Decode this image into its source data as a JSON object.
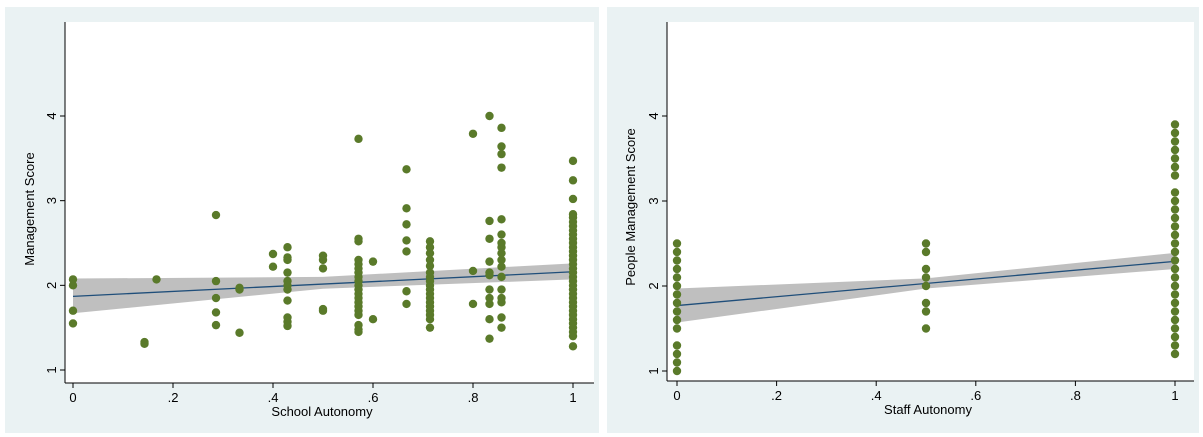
{
  "chart_data": [
    {
      "type": "scatter",
      "title": "",
      "xlabel": "School Autonomy",
      "ylabel": "Management Score",
      "xlim": [
        0,
        1
      ],
      "ylim": [
        1,
        4.95
      ],
      "x_ticks": [
        0,
        0.2,
        0.4,
        0.6,
        0.8,
        1
      ],
      "x_tick_labels": [
        "0",
        ".2",
        ".4",
        ".6",
        ".8",
        "1"
      ],
      "y_ticks": [
        1,
        2,
        3,
        4
      ],
      "y_tick_labels": [
        "1",
        "2",
        "3",
        "4"
      ],
      "grid": false,
      "legend": "none",
      "colors": {
        "marker": "#5a7a2a",
        "fit_line": "#1f4e7a",
        "ci_band": "#b4b4b4"
      },
      "fit_line": {
        "x": [
          0,
          1
        ],
        "y": [
          1.87,
          2.16
        ]
      },
      "ci_band": {
        "x": [
          0,
          0.5,
          1
        ],
        "lower": [
          1.67,
          1.96,
          2.07
        ],
        "upper": [
          2.08,
          2.1,
          2.26
        ]
      },
      "points": [
        {
          "x": 0,
          "y": 2.07
        },
        {
          "x": 0,
          "y": 2.0
        },
        {
          "x": 0,
          "y": 1.7
        },
        {
          "x": 0,
          "y": 1.55
        },
        {
          "x": 0.143,
          "y": 1.33
        },
        {
          "x": 0.143,
          "y": 1.31
        },
        {
          "x": 0.167,
          "y": 2.07
        },
        {
          "x": 0.286,
          "y": 2.83
        },
        {
          "x": 0.286,
          "y": 2.05
        },
        {
          "x": 0.286,
          "y": 1.85
        },
        {
          "x": 0.286,
          "y": 1.68
        },
        {
          "x": 0.286,
          "y": 1.53
        },
        {
          "x": 0.333,
          "y": 1.97
        },
        {
          "x": 0.333,
          "y": 1.95
        },
        {
          "x": 0.333,
          "y": 1.44
        },
        {
          "x": 0.4,
          "y": 2.37
        },
        {
          "x": 0.4,
          "y": 2.22
        },
        {
          "x": 0.429,
          "y": 2.45
        },
        {
          "x": 0.429,
          "y": 2.33
        },
        {
          "x": 0.429,
          "y": 2.3
        },
        {
          "x": 0.429,
          "y": 2.15
        },
        {
          "x": 0.429,
          "y": 2.05
        },
        {
          "x": 0.429,
          "y": 2.0
        },
        {
          "x": 0.429,
          "y": 1.95
        },
        {
          "x": 0.429,
          "y": 1.82
        },
        {
          "x": 0.429,
          "y": 1.62
        },
        {
          "x": 0.429,
          "y": 1.57
        },
        {
          "x": 0.429,
          "y": 1.52
        },
        {
          "x": 0.5,
          "y": 2.35
        },
        {
          "x": 0.5,
          "y": 2.3
        },
        {
          "x": 0.5,
          "y": 2.2
        },
        {
          "x": 0.5,
          "y": 1.72
        },
        {
          "x": 0.5,
          "y": 1.7
        },
        {
          "x": 0.571,
          "y": 3.73
        },
        {
          "x": 0.571,
          "y": 2.55
        },
        {
          "x": 0.571,
          "y": 2.52
        },
        {
          "x": 0.571,
          "y": 2.3
        },
        {
          "x": 0.571,
          "y": 2.25
        },
        {
          "x": 0.571,
          "y": 2.2
        },
        {
          "x": 0.571,
          "y": 2.15
        },
        {
          "x": 0.571,
          "y": 2.1
        },
        {
          "x": 0.571,
          "y": 2.05
        },
        {
          "x": 0.571,
          "y": 2.0
        },
        {
          "x": 0.571,
          "y": 1.95
        },
        {
          "x": 0.571,
          "y": 1.9
        },
        {
          "x": 0.571,
          "y": 1.85
        },
        {
          "x": 0.571,
          "y": 1.8
        },
        {
          "x": 0.571,
          "y": 1.75
        },
        {
          "x": 0.571,
          "y": 1.7
        },
        {
          "x": 0.571,
          "y": 1.65
        },
        {
          "x": 0.571,
          "y": 1.53
        },
        {
          "x": 0.571,
          "y": 1.48
        },
        {
          "x": 0.571,
          "y": 1.45
        },
        {
          "x": 0.6,
          "y": 2.28
        },
        {
          "x": 0.6,
          "y": 1.6
        },
        {
          "x": 0.667,
          "y": 3.37
        },
        {
          "x": 0.667,
          "y": 2.91
        },
        {
          "x": 0.667,
          "y": 2.72
        },
        {
          "x": 0.667,
          "y": 2.53
        },
        {
          "x": 0.667,
          "y": 2.4
        },
        {
          "x": 0.667,
          "y": 1.93
        },
        {
          "x": 0.667,
          "y": 1.78
        },
        {
          "x": 0.714,
          "y": 2.52
        },
        {
          "x": 0.714,
          "y": 2.45
        },
        {
          "x": 0.714,
          "y": 2.38
        },
        {
          "x": 0.714,
          "y": 2.3
        },
        {
          "x": 0.714,
          "y": 2.23
        },
        {
          "x": 0.714,
          "y": 2.15
        },
        {
          "x": 0.714,
          "y": 2.1
        },
        {
          "x": 0.714,
          "y": 2.05
        },
        {
          "x": 0.714,
          "y": 2.0
        },
        {
          "x": 0.714,
          "y": 1.95
        },
        {
          "x": 0.714,
          "y": 1.9
        },
        {
          "x": 0.714,
          "y": 1.85
        },
        {
          "x": 0.714,
          "y": 1.8
        },
        {
          "x": 0.714,
          "y": 1.75
        },
        {
          "x": 0.714,
          "y": 1.7
        },
        {
          "x": 0.714,
          "y": 1.65
        },
        {
          "x": 0.714,
          "y": 1.6
        },
        {
          "x": 0.714,
          "y": 1.5
        },
        {
          "x": 0.8,
          "y": 3.79
        },
        {
          "x": 0.8,
          "y": 2.17
        },
        {
          "x": 0.8,
          "y": 1.78
        },
        {
          "x": 0.833,
          "y": 4.0
        },
        {
          "x": 0.833,
          "y": 2.76
        },
        {
          "x": 0.833,
          "y": 2.55
        },
        {
          "x": 0.833,
          "y": 2.28
        },
        {
          "x": 0.833,
          "y": 2.15
        },
        {
          "x": 0.833,
          "y": 2.12
        },
        {
          "x": 0.833,
          "y": 1.95
        },
        {
          "x": 0.833,
          "y": 1.85
        },
        {
          "x": 0.833,
          "y": 1.78
        },
        {
          "x": 0.833,
          "y": 1.6
        },
        {
          "x": 0.833,
          "y": 1.37
        },
        {
          "x": 0.857,
          "y": 3.86
        },
        {
          "x": 0.857,
          "y": 3.64
        },
        {
          "x": 0.857,
          "y": 3.55
        },
        {
          "x": 0.857,
          "y": 3.39
        },
        {
          "x": 0.857,
          "y": 2.78
        },
        {
          "x": 0.857,
          "y": 2.6
        },
        {
          "x": 0.857,
          "y": 2.5
        },
        {
          "x": 0.857,
          "y": 2.45
        },
        {
          "x": 0.857,
          "y": 2.38
        },
        {
          "x": 0.857,
          "y": 2.3
        },
        {
          "x": 0.857,
          "y": 2.22
        },
        {
          "x": 0.857,
          "y": 2.1
        },
        {
          "x": 0.857,
          "y": 1.95
        },
        {
          "x": 0.857,
          "y": 1.85
        },
        {
          "x": 0.857,
          "y": 1.8
        },
        {
          "x": 0.857,
          "y": 1.62
        },
        {
          "x": 0.857,
          "y": 1.5
        },
        {
          "x": 1,
          "y": 3.47
        },
        {
          "x": 1,
          "y": 3.24
        },
        {
          "x": 1,
          "y": 3.02
        },
        {
          "x": 1,
          "y": 2.84
        },
        {
          "x": 1,
          "y": 2.8
        },
        {
          "x": 1,
          "y": 2.75
        },
        {
          "x": 1,
          "y": 2.7
        },
        {
          "x": 1,
          "y": 2.65
        },
        {
          "x": 1,
          "y": 2.6
        },
        {
          "x": 1,
          "y": 2.55
        },
        {
          "x": 1,
          "y": 2.5
        },
        {
          "x": 1,
          "y": 2.45
        },
        {
          "x": 1,
          "y": 2.4
        },
        {
          "x": 1,
          "y": 2.35
        },
        {
          "x": 1,
          "y": 2.3
        },
        {
          "x": 1,
          "y": 2.25
        },
        {
          "x": 1,
          "y": 2.2
        },
        {
          "x": 1,
          "y": 2.15
        },
        {
          "x": 1,
          "y": 2.1
        },
        {
          "x": 1,
          "y": 2.05
        },
        {
          "x": 1,
          "y": 2.0
        },
        {
          "x": 1,
          "y": 1.95
        },
        {
          "x": 1,
          "y": 1.9
        },
        {
          "x": 1,
          "y": 1.85
        },
        {
          "x": 1,
          "y": 1.8
        },
        {
          "x": 1,
          "y": 1.75
        },
        {
          "x": 1,
          "y": 1.7
        },
        {
          "x": 1,
          "y": 1.65
        },
        {
          "x": 1,
          "y": 1.6
        },
        {
          "x": 1,
          "y": 1.55
        },
        {
          "x": 1,
          "y": 1.5
        },
        {
          "x": 1,
          "y": 1.45
        },
        {
          "x": 1,
          "y": 1.4
        },
        {
          "x": 1,
          "y": 1.28
        }
      ]
    },
    {
      "type": "scatter",
      "title": "",
      "xlabel": "Staff Autonomy",
      "ylabel": "People Management Score",
      "xlim": [
        0,
        1
      ],
      "ylim": [
        1,
        4.95
      ],
      "x_ticks": [
        0,
        0.2,
        0.4,
        0.6,
        0.8,
        1
      ],
      "x_tick_labels": [
        "0",
        ".2",
        ".4",
        ".6",
        ".8",
        "1"
      ],
      "y_ticks": [
        1,
        2,
        3,
        4
      ],
      "y_tick_labels": [
        "1",
        "2",
        "3",
        "4"
      ],
      "grid": false,
      "legend": "none",
      "colors": {
        "marker": "#5a7a2a",
        "fit_line": "#1f4e7a",
        "ci_band": "#b4b4b4"
      },
      "fit_line": {
        "x": [
          0,
          1
        ],
        "y": [
          1.77,
          2.29
        ]
      },
      "ci_band": {
        "x": [
          0,
          0.5,
          1
        ],
        "lower": [
          1.57,
          1.97,
          2.2
        ],
        "upper": [
          1.97,
          2.09,
          2.39
        ]
      },
      "points": [
        {
          "x": 0,
          "y": 2.5
        },
        {
          "x": 0,
          "y": 2.4
        },
        {
          "x": 0,
          "y": 2.3
        },
        {
          "x": 0,
          "y": 2.2
        },
        {
          "x": 0,
          "y": 2.1
        },
        {
          "x": 0,
          "y": 2.0
        },
        {
          "x": 0,
          "y": 1.9
        },
        {
          "x": 0,
          "y": 1.8
        },
        {
          "x": 0,
          "y": 1.7
        },
        {
          "x": 0,
          "y": 1.6
        },
        {
          "x": 0,
          "y": 1.5
        },
        {
          "x": 0,
          "y": 1.3
        },
        {
          "x": 0,
          "y": 1.2
        },
        {
          "x": 0,
          "y": 1.1
        },
        {
          "x": 0,
          "y": 1.0
        },
        {
          "x": 0.5,
          "y": 2.5
        },
        {
          "x": 0.5,
          "y": 2.4
        },
        {
          "x": 0.5,
          "y": 2.2
        },
        {
          "x": 0.5,
          "y": 2.1
        },
        {
          "x": 0.5,
          "y": 2.0
        },
        {
          "x": 0.5,
          "y": 1.8
        },
        {
          "x": 0.5,
          "y": 1.7
        },
        {
          "x": 0.5,
          "y": 1.5
        },
        {
          "x": 1,
          "y": 3.9
        },
        {
          "x": 1,
          "y": 3.8
        },
        {
          "x": 1,
          "y": 3.7
        },
        {
          "x": 1,
          "y": 3.6
        },
        {
          "x": 1,
          "y": 3.5
        },
        {
          "x": 1,
          "y": 3.4
        },
        {
          "x": 1,
          "y": 3.3
        },
        {
          "x": 1,
          "y": 3.1
        },
        {
          "x": 1,
          "y": 3.0
        },
        {
          "x": 1,
          "y": 2.9
        },
        {
          "x": 1,
          "y": 2.8
        },
        {
          "x": 1,
          "y": 2.7
        },
        {
          "x": 1,
          "y": 2.6
        },
        {
          "x": 1,
          "y": 2.5
        },
        {
          "x": 1,
          "y": 2.4
        },
        {
          "x": 1,
          "y": 2.3
        },
        {
          "x": 1,
          "y": 2.2
        },
        {
          "x": 1,
          "y": 2.1
        },
        {
          "x": 1,
          "y": 2.0
        },
        {
          "x": 1,
          "y": 1.9
        },
        {
          "x": 1,
          "y": 1.8
        },
        {
          "x": 1,
          "y": 1.7
        },
        {
          "x": 1,
          "y": 1.6
        },
        {
          "x": 1,
          "y": 1.5
        },
        {
          "x": 1,
          "y": 1.4
        },
        {
          "x": 1,
          "y": 1.3
        },
        {
          "x": 1,
          "y": 1.2
        }
      ]
    }
  ]
}
